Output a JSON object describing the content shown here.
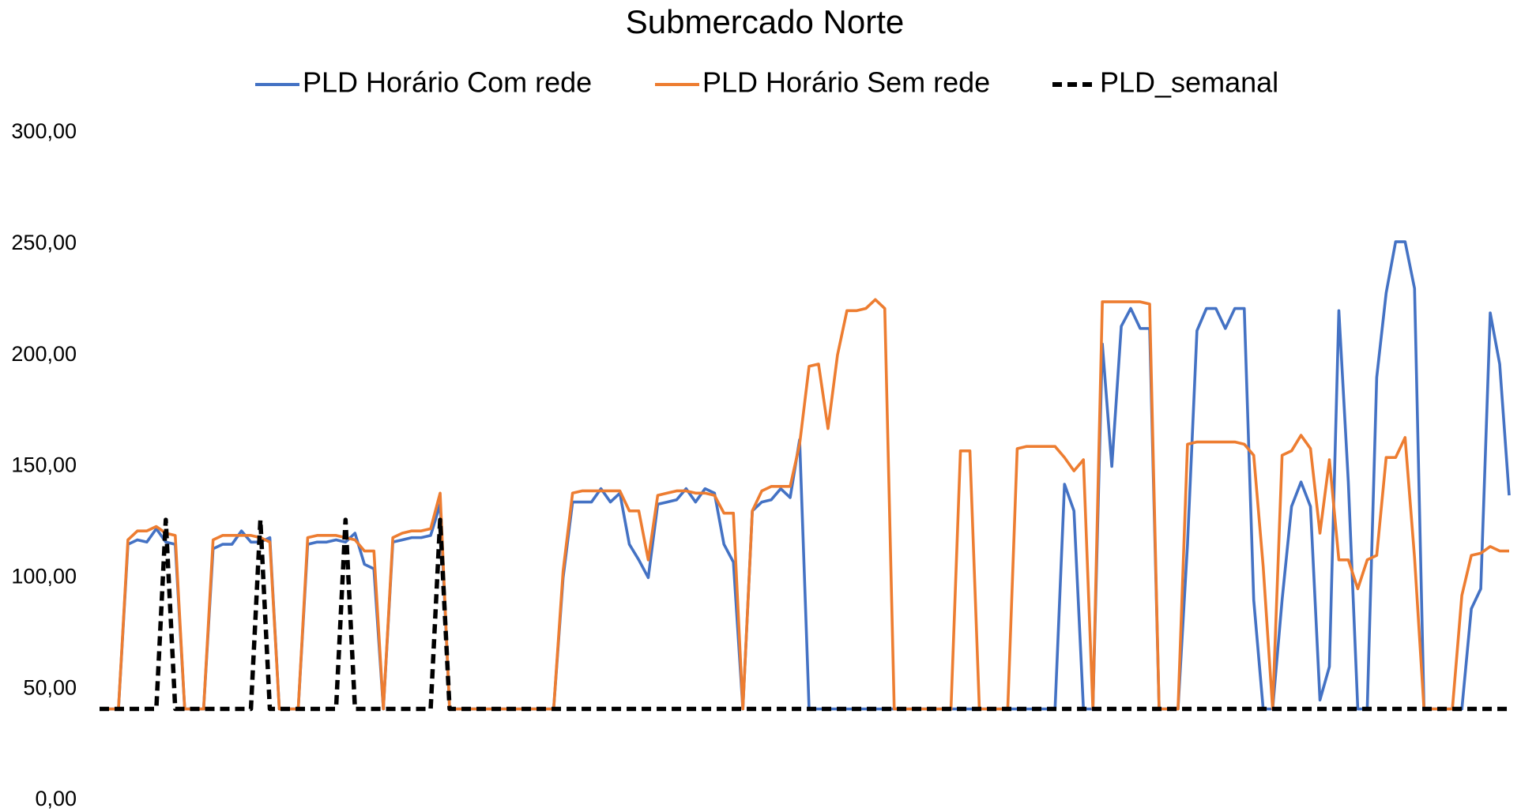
{
  "chart_data": {
    "type": "line",
    "title": "Submercado Norte",
    "ylim": [
      0,
      300
    ],
    "yticks": [
      {
        "value": 0,
        "label": "0,00"
      },
      {
        "value": 50,
        "label": "50,00"
      },
      {
        "value": 100,
        "label": "100,00"
      },
      {
        "value": 150,
        "label": "150,00"
      },
      {
        "value": 200,
        "label": "200,00"
      },
      {
        "value": 250,
        "label": "250,00"
      },
      {
        "value": 300,
        "label": "300,00"
      }
    ],
    "grid": false,
    "legend": "top",
    "series": [
      {
        "name": "PLD Horário Com rede",
        "color": "#4472c4",
        "dashed": false,
        "values": [
          41,
          41,
          41,
          115,
          117,
          116,
          122,
          116,
          115,
          41,
          41,
          41,
          113,
          115,
          115,
          121,
          116,
          116,
          118,
          41,
          41,
          41,
          115,
          116,
          116,
          117,
          116,
          120,
          106,
          104,
          41,
          116,
          117,
          118,
          118,
          119,
          133,
          41,
          41,
          41,
          41,
          41,
          41,
          41,
          41,
          41,
          41,
          41,
          41,
          100,
          134,
          134,
          134,
          140,
          134,
          138,
          115,
          108,
          100,
          133,
          134,
          135,
          140,
          134,
          140,
          138,
          115,
          107,
          41,
          130,
          134,
          135,
          140,
          136,
          162,
          41,
          41,
          41,
          41,
          41,
          41,
          41,
          41,
          41,
          41,
          41,
          41,
          41,
          41,
          41,
          41,
          41,
          41,
          41,
          41,
          41,
          41,
          41,
          41,
          41,
          41,
          41,
          142,
          130,
          41,
          41,
          205,
          150,
          213,
          221,
          212,
          212,
          41,
          41,
          41,
          115,
          211,
          221,
          221,
          212,
          221,
          221,
          90,
          41,
          41,
          90,
          132,
          143,
          132,
          45,
          60,
          220,
          143,
          41,
          41,
          190,
          228,
          251,
          251,
          230,
          41,
          41,
          41,
          41,
          41,
          86,
          95,
          219,
          196,
          137
        ]
      },
      {
        "name": "PLD Horário Sem rede",
        "color": "#ed7d31",
        "dashed": false,
        "values": [
          41,
          41,
          41,
          117,
          121,
          121,
          123,
          120,
          119,
          41,
          41,
          41,
          117,
          119,
          119,
          119,
          119,
          118,
          116,
          41,
          41,
          41,
          118,
          119,
          119,
          119,
          118,
          117,
          112,
          112,
          41,
          118,
          120,
          121,
          121,
          122,
          138,
          41,
          41,
          41,
          41,
          41,
          41,
          41,
          41,
          41,
          41,
          41,
          41,
          103,
          138,
          139,
          139,
          139,
          139,
          139,
          130,
          130,
          108,
          137,
          138,
          139,
          139,
          138,
          138,
          137,
          129,
          129,
          41,
          130,
          139,
          141,
          141,
          141,
          160,
          195,
          196,
          167,
          200,
          220,
          220,
          221,
          225,
          221,
          41,
          41,
          41,
          41,
          41,
          41,
          41,
          157,
          157,
          41,
          41,
          41,
          41,
          158,
          159,
          159,
          159,
          159,
          154,
          148,
          153,
          41,
          224,
          224,
          224,
          224,
          224,
          223,
          41,
          41,
          41,
          160,
          161,
          161,
          161,
          161,
          161,
          160,
          155,
          105,
          41,
          155,
          157,
          164,
          158,
          120,
          153,
          108,
          108,
          95,
          108,
          110,
          154,
          154,
          163,
          109,
          41,
          41,
          41,
          41,
          92,
          110,
          111,
          114,
          112,
          112
        ]
      },
      {
        "name": "PLD_semanal",
        "color": "#000000",
        "dashed": true,
        "values": [
          41,
          41,
          41,
          41,
          41,
          41,
          41,
          126,
          41,
          41,
          41,
          41,
          41,
          41,
          41,
          41,
          41,
          126,
          41,
          41,
          41,
          41,
          41,
          41,
          41,
          41,
          126,
          41,
          41,
          41,
          41,
          41,
          41,
          41,
          41,
          41,
          126,
          41,
          41,
          41,
          41,
          41,
          41,
          41,
          41,
          41,
          41,
          41,
          41,
          41,
          41,
          41,
          41,
          41,
          41,
          41,
          41,
          41,
          41,
          41,
          41,
          41,
          41,
          41,
          41,
          41,
          41,
          41,
          41,
          41,
          41,
          41,
          41,
          41,
          41,
          41,
          41,
          41,
          41,
          41,
          41,
          41,
          41,
          41,
          41,
          41,
          41,
          41,
          41,
          41,
          41,
          41,
          41,
          41,
          41,
          41,
          41,
          41,
          41,
          41,
          41,
          41,
          41,
          41,
          41,
          41,
          41,
          41,
          41,
          41,
          41,
          41,
          41,
          41,
          41,
          41,
          41,
          41,
          41,
          41,
          41,
          41,
          41,
          41,
          41,
          41,
          41,
          41,
          41,
          41,
          41,
          41,
          41,
          41,
          41,
          41,
          41,
          41,
          41,
          41,
          41,
          41,
          41,
          41,
          41,
          41,
          41,
          41,
          41,
          41
        ]
      }
    ]
  }
}
